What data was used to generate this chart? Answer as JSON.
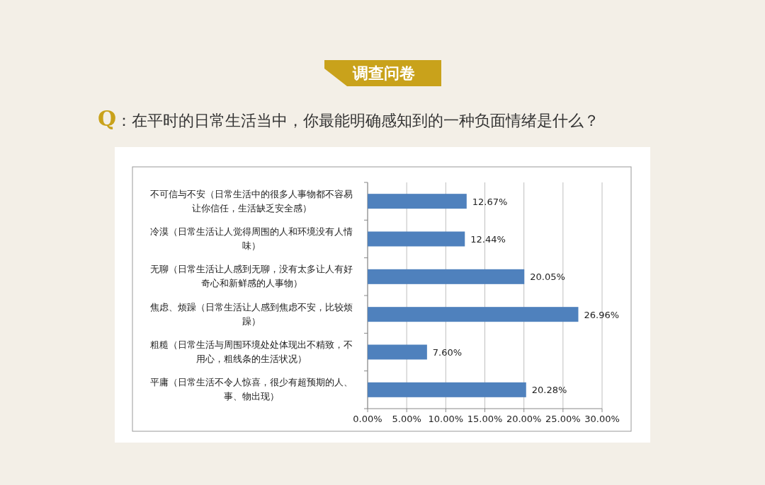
{
  "chart_data": {
    "type": "bar",
    "orientation": "horizontal",
    "title": "调查问卷",
    "subtitle": "Q：在平时的日常生活当中，你最能明确感知到的一种负面情绪是什么？",
    "categories": [
      "不可信与不安（日常生活中的很多人事物都不容易让你信任，生活缺乏安全感）",
      "冷漠（日常生活让人觉得周围的人和环境没有人情味）",
      "无聊（日常生活让人感到无聊，没有太多让人有好奇心和新鲜感的人事物）",
      "焦虑、烦躁（日常生活让人感到焦虑不安，比较烦躁）",
      "粗糙（日常生活与周围环境处处体现出不精致，不用心，粗线条的生活状况）",
      "平庸（日常生活不令人惊喜，很少有超预期的人、事、物出现）"
    ],
    "values": [
      12.67,
      12.44,
      20.05,
      26.96,
      7.6,
      20.28
    ],
    "value_labels": [
      "12.67%",
      "12.44%",
      "20.05%",
      "26.96%",
      "7.60%",
      "20.28%"
    ],
    "color": "#4f81bd",
    "xlim": [
      0,
      30
    ],
    "xticks": [
      {
        "value": 0,
        "label": "0.00%"
      },
      {
        "value": 5,
        "label": "5.00%"
      },
      {
        "value": 10,
        "label": "10.00%"
      },
      {
        "value": 15,
        "label": "15.00%"
      },
      {
        "value": 20,
        "label": "20.00%"
      },
      {
        "value": 25,
        "label": "25.00%"
      },
      {
        "value": 30,
        "label": "30.00%"
      }
    ],
    "grid": "x"
  }
}
